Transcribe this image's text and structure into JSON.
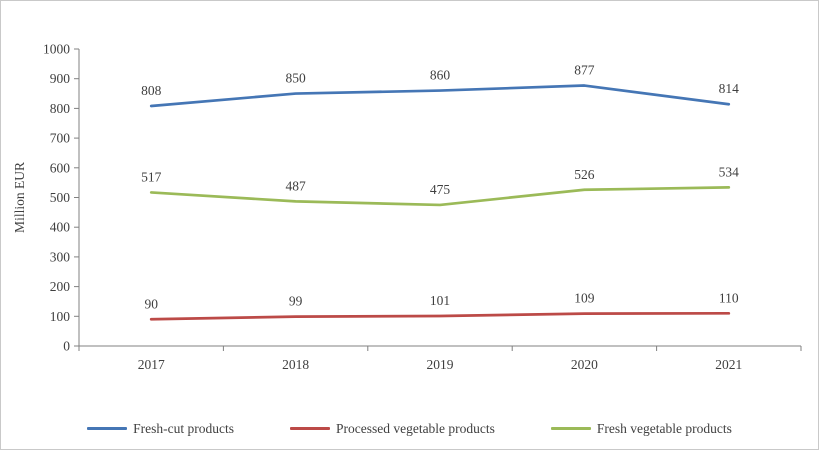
{
  "chart_data": {
    "type": "line",
    "title": "",
    "xlabel": "",
    "ylabel": "Million EUR",
    "categories": [
      "2017",
      "2018",
      "2019",
      "2020",
      "2021"
    ],
    "series": [
      {
        "name": "Fresh-cut products",
        "color": "#4576b5",
        "values": [
          808,
          850,
          860,
          877,
          814
        ]
      },
      {
        "name": "Processed vegetable products",
        "color": "#bc4a47",
        "values": [
          90,
          99,
          101,
          109,
          110
        ]
      },
      {
        "name": "Fresh vegetable products",
        "color": "#9bba58",
        "values": [
          517,
          487,
          475,
          526,
          534
        ]
      }
    ],
    "ylim": [
      0,
      1000
    ],
    "ytick_step": 100,
    "grid": false,
    "data_labels": true,
    "legend_position": "bottom",
    "axis_color": "#808080",
    "text_color": "#3f3f3f"
  }
}
